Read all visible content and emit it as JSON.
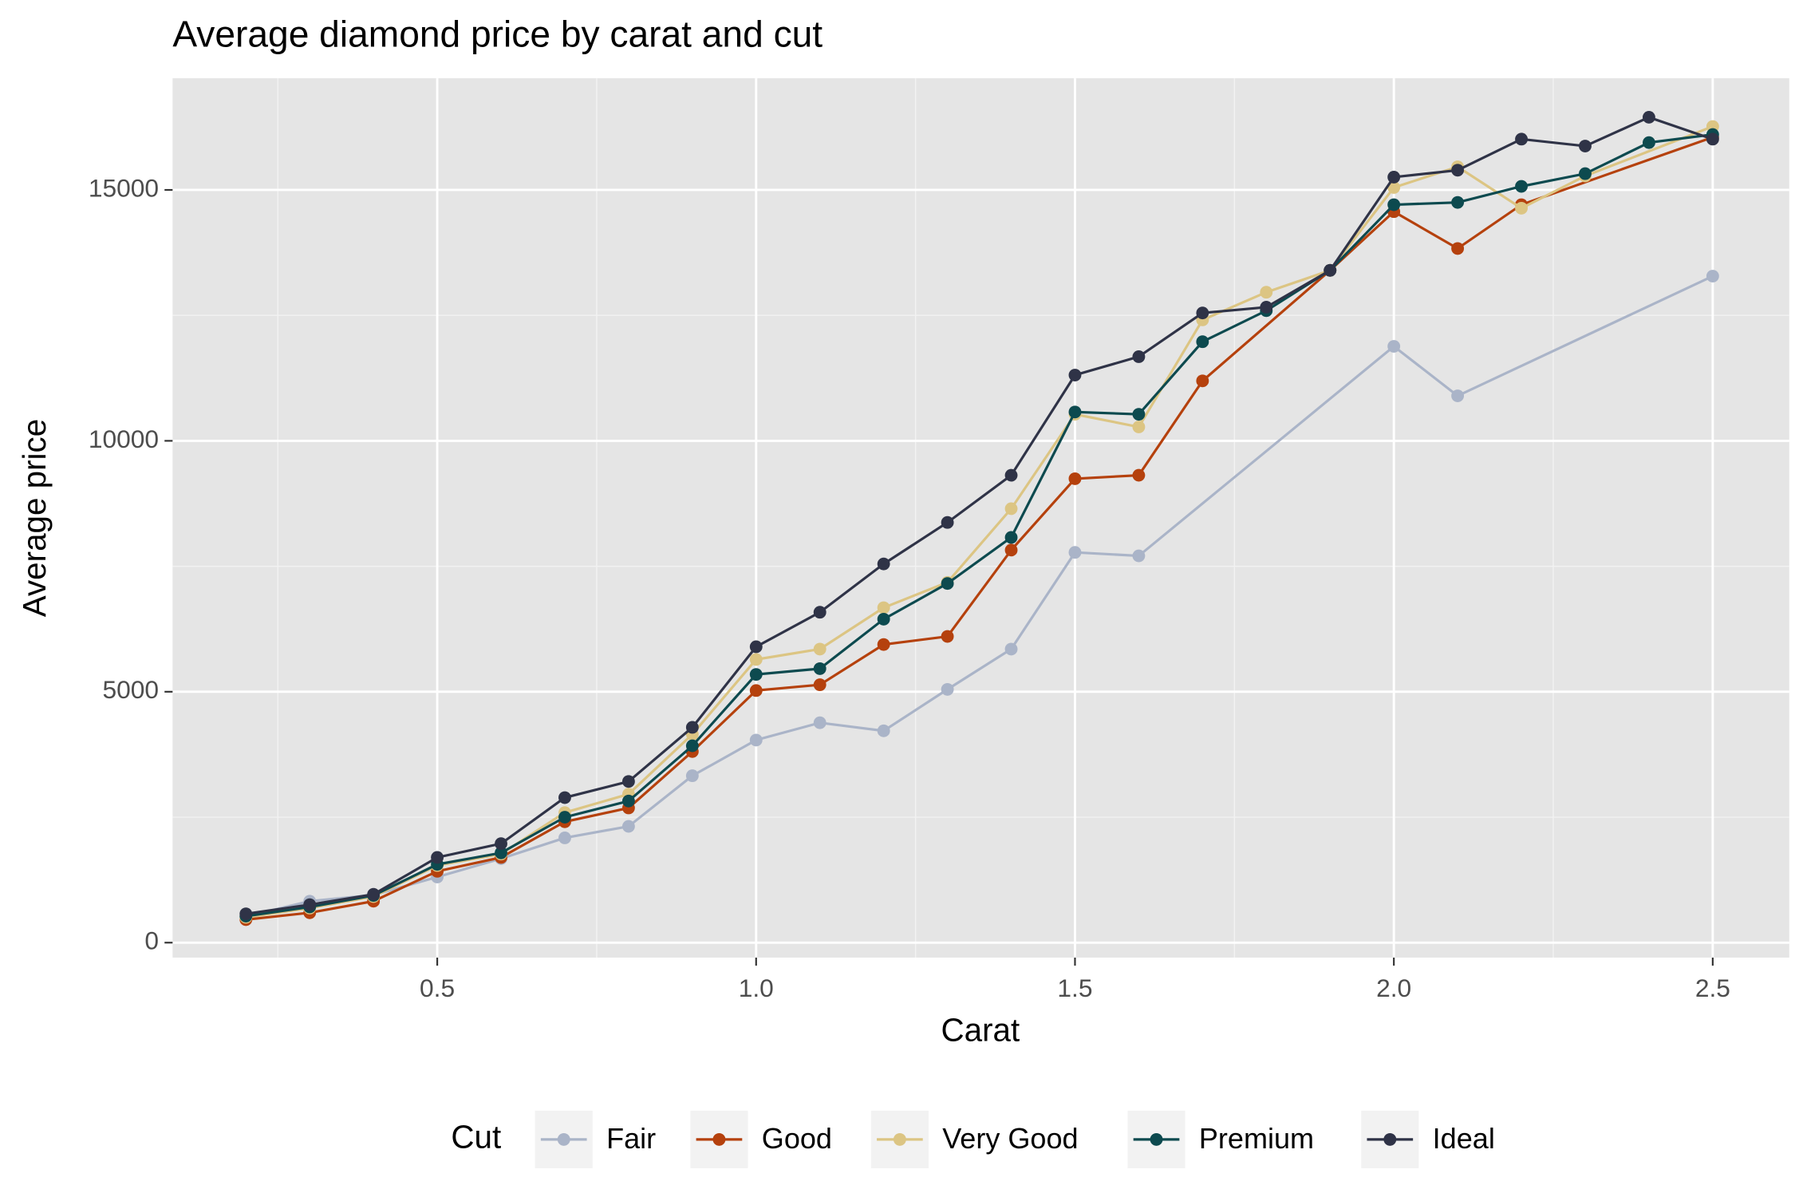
{
  "chart_data": {
    "type": "line",
    "title": "Average diamond price by carat and cut",
    "x_label": "Carat",
    "y_label": "Average price",
    "legend_title": "Cut",
    "legend_position": "bottom",
    "grid": true,
    "xlim": [
      0.085,
      2.62
    ],
    "ylim": [
      -298,
      17225
    ],
    "xticks": [
      0.5,
      {
        "value": 1,
        "label": "1.0"
      },
      1.5,
      {
        "value": 2,
        "label": "2.0"
      },
      2.5
    ],
    "yticks": [
      0,
      5000,
      10000,
      15000
    ],
    "series": [
      {
        "name": "Fair",
        "color": "#aab4c8",
        "x": [
          0.2,
          0.3,
          0.4,
          0.5,
          0.6,
          0.7,
          0.8,
          0.9,
          1.0,
          1.1,
          1.2,
          1.3,
          1.4,
          1.5,
          1.6,
          2.0,
          2.1,
          2.5
        ],
        "values": [
          520,
          826,
          950,
          1308,
          1675,
          2088,
          2317,
          3326,
          4037,
          4382,
          4221,
          5047,
          5850,
          7777,
          7708,
          11883,
          10897,
          13282
        ]
      },
      {
        "name": "Good",
        "color": "#b5410d",
        "x": [
          0.2,
          0.3,
          0.4,
          0.5,
          0.6,
          0.7,
          0.8,
          0.9,
          1.0,
          1.1,
          1.2,
          1.3,
          1.4,
          1.5,
          1.6,
          1.7,
          1.9,
          2.0,
          2.1,
          2.2,
          2.5
        ],
        "values": [
          459,
          596,
          826,
          1422,
          1698,
          2409,
          2684,
          3808,
          5024,
          5139,
          5941,
          6102,
          7823,
          9245,
          9314,
          11195,
          13397,
          14567,
          13833,
          14705,
          16050
        ]
      },
      {
        "name": "Very Good",
        "color": "#dcc583",
        "x": [
          0.2,
          0.3,
          0.4,
          0.5,
          0.6,
          0.7,
          0.8,
          0.9,
          1.0,
          1.1,
          1.2,
          1.3,
          1.4,
          1.5,
          1.6,
          1.7,
          1.8,
          1.9,
          2.0,
          2.1,
          2.2,
          2.3,
          2.5
        ],
        "values": [
          505,
          688,
          918,
          1537,
          1766,
          2592,
          2959,
          4152,
          5643,
          5850,
          6675,
          7180,
          8648,
          10529,
          10277,
          12410,
          12961,
          13397,
          15048,
          15461,
          14636,
          15278,
          16264
        ]
      },
      {
        "name": "Premium",
        "color": "#0d4a4f",
        "x": [
          0.2,
          0.3,
          0.4,
          0.5,
          0.6,
          0.7,
          0.8,
          0.9,
          1.0,
          1.1,
          1.2,
          1.3,
          1.4,
          1.5,
          1.6,
          1.7,
          1.8,
          1.9,
          2.0,
          2.1,
          2.2,
          2.3,
          2.4,
          2.5
        ],
        "values": [
          528,
          711,
          940,
          1560,
          1789,
          2500,
          2822,
          3923,
          5345,
          5460,
          6446,
          7157,
          8075,
          10575,
          10529,
          11975,
          12594,
          13397,
          14705,
          14751,
          15071,
          15324,
          15943,
          16104
        ]
      },
      {
        "name": "Ideal",
        "color": "#2f3347",
        "x": [
          0.2,
          0.3,
          0.4,
          0.5,
          0.6,
          0.7,
          0.8,
          0.9,
          1.0,
          1.1,
          1.2,
          1.3,
          1.4,
          1.5,
          1.6,
          1.7,
          1.8,
          1.9,
          2.0,
          2.1,
          2.2,
          2.3,
          2.4,
          2.5
        ],
        "values": [
          574,
          757,
          963,
          1698,
          1973,
          2890,
          3212,
          4290,
          5896,
          6584,
          7547,
          8373,
          9314,
          11310,
          11677,
          12548,
          12663,
          13397,
          15255,
          15393,
          16012,
          15874,
          16448,
          16012
        ]
      }
    ]
  }
}
